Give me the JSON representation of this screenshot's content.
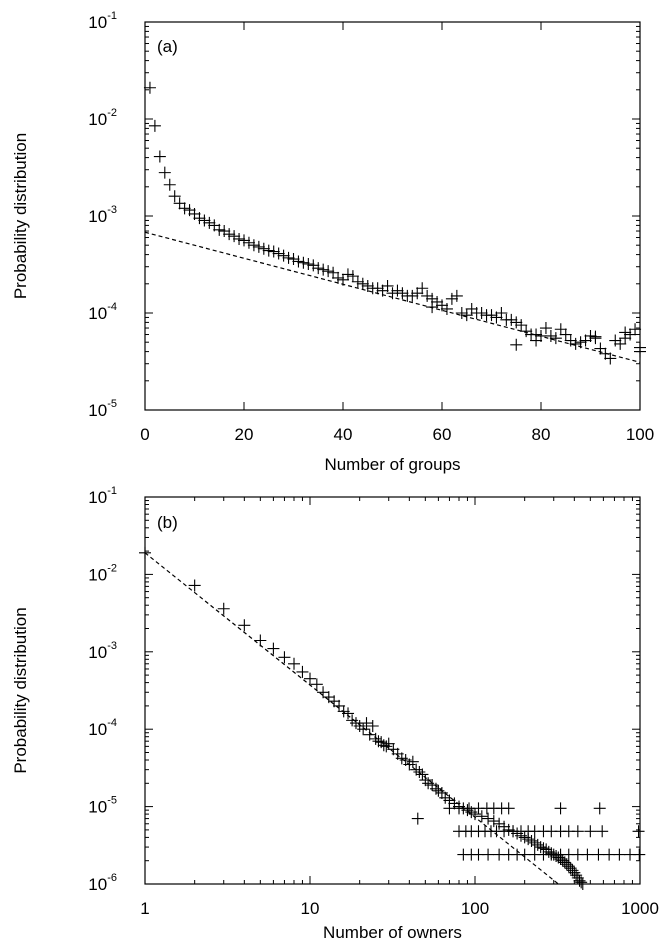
{
  "chart_data": [
    {
      "type": "scatter",
      "panel_label": "(a)",
      "xlabel": "Number of groups",
      "ylabel": "Probability distribution",
      "xscale": "linear",
      "yscale": "log",
      "xlim": [
        0,
        100
      ],
      "ylim": [
        1e-05,
        0.1
      ],
      "x_ticks": [
        {
          "value": 0,
          "label": "0"
        },
        {
          "value": 20,
          "label": "20"
        },
        {
          "value": 40,
          "label": "40"
        },
        {
          "value": 60,
          "label": "60"
        },
        {
          "value": 80,
          "label": "80"
        },
        {
          "value": 100,
          "label": "100"
        }
      ],
      "y_ticks": [
        {
          "value": 1e-05,
          "base": "10",
          "exp": "-5"
        },
        {
          "value": 0.0001,
          "base": "10",
          "exp": "-4"
        },
        {
          "value": 0.001,
          "base": "10",
          "exp": "-3"
        },
        {
          "value": 0.01,
          "base": "10",
          "exp": "-2"
        },
        {
          "value": 0.1,
          "base": "10",
          "exp": "-1"
        }
      ],
      "grid": false,
      "points": [
        [
          1,
          0.021
        ],
        [
          2,
          0.0085
        ],
        [
          3,
          0.0041
        ],
        [
          4,
          0.0028
        ],
        [
          5,
          0.0021
        ],
        [
          6,
          0.0016
        ],
        [
          7,
          0.00135
        ],
        [
          8,
          0.0012
        ],
        [
          9,
          0.00115
        ],
        [
          10,
          0.00105
        ],
        [
          11,
          0.00095
        ],
        [
          12,
          0.0009
        ],
        [
          13,
          0.00085
        ],
        [
          14,
          0.0008
        ],
        [
          15,
          0.00072
        ],
        [
          16,
          0.0007
        ],
        [
          17,
          0.00065
        ],
        [
          18,
          0.00062
        ],
        [
          19,
          0.00058
        ],
        [
          20,
          0.00056
        ],
        [
          21,
          0.00053
        ],
        [
          22,
          0.0005
        ],
        [
          23,
          0.00048
        ],
        [
          24,
          0.00046
        ],
        [
          25,
          0.00044
        ],
        [
          26,
          0.00043
        ],
        [
          27,
          0.00041
        ],
        [
          28,
          0.00039
        ],
        [
          29,
          0.00037
        ],
        [
          30,
          0.00036
        ],
        [
          31,
          0.00034
        ],
        [
          32,
          0.00033
        ],
        [
          33,
          0.00032
        ],
        [
          34,
          0.00031
        ],
        [
          35,
          0.00029
        ],
        [
          36,
          0.00028
        ],
        [
          37,
          0.00027
        ],
        [
          38,
          0.00026
        ],
        [
          39,
          0.00023
        ],
        [
          40,
          0.00022
        ],
        [
          41,
          0.00025
        ],
        [
          42,
          0.00024
        ],
        [
          43,
          0.00021
        ],
        [
          44,
          0.0002
        ],
        [
          45,
          0.00019
        ],
        [
          46,
          0.00018
        ],
        [
          47,
          0.00018
        ],
        [
          48,
          0.00017
        ],
        [
          49,
          0.00019
        ],
        [
          50,
          0.00016
        ],
        [
          51,
          0.00017
        ],
        [
          52,
          0.00016
        ],
        [
          53,
          0.00015
        ],
        [
          54,
          0.00015
        ],
        [
          55,
          0.00016
        ],
        [
          56,
          0.00018
        ],
        [
          57,
          0.00015
        ],
        [
          58,
          0.00014
        ],
        [
          59,
          0.00013
        ],
        [
          60,
          0.00012
        ],
        [
          61,
          0.00011
        ],
        [
          62,
          0.00014
        ],
        [
          63,
          0.00015
        ],
        [
          64,
          0.0001
        ],
        [
          65,
          9.5e-05
        ],
        [
          66,
          0.00011
        ],
        [
          67,
          0.0001
        ],
        [
          68,
          0.0001
        ],
        [
          69,
          9.5e-05
        ],
        [
          70,
          9.5e-05
        ],
        [
          71,
          9e-05
        ],
        [
          72,
          0.0001
        ],
        [
          73,
          8.5e-05
        ],
        [
          74,
          8.5e-05
        ],
        [
          75,
          8e-05
        ],
        [
          76,
          7.5e-05
        ],
        [
          77,
          6.5e-05
        ],
        [
          78,
          6e-05
        ],
        [
          79,
          6e-05
        ],
        [
          80,
          5.8e-05
        ],
        [
          81,
          7e-05
        ],
        [
          82,
          5.8e-05
        ],
        [
          83,
          5.5e-05
        ],
        [
          84,
          6.8e-05
        ],
        [
          85,
          6e-05
        ],
        [
          86,
          5.2e-05
        ],
        [
          87,
          4.8e-05
        ],
        [
          88,
          5e-05
        ],
        [
          89,
          5.2e-05
        ],
        [
          90,
          5.8e-05
        ],
        [
          91,
          5.5e-05
        ],
        [
          92,
          4.3e-05
        ],
        [
          93,
          3.8e-05
        ],
        [
          94,
          3.4e-05
        ],
        [
          95,
          5.2e-05
        ],
        [
          96,
          4.8e-05
        ],
        [
          97,
          5.5e-05
        ],
        [
          98,
          6e-05
        ],
        [
          99,
          6.8e-05
        ],
        [
          100,
          4.4e-05
        ],
        [
          75,
          4.7e-05
        ],
        [
          58,
          0.000115
        ],
        [
          79,
          5.2e-05
        ],
        [
          91,
          5.7e-05
        ],
        [
          97,
          6.3e-05
        ],
        [
          100,
          4e-05
        ]
      ],
      "fit_line": {
        "style": "dashed",
        "x": [
          0,
          100
        ],
        "y": [
          0.00068,
          3.1e-05
        ]
      }
    },
    {
      "type": "scatter",
      "panel_label": "(b)",
      "xlabel": "Number of owners",
      "ylabel": "Probability distribution",
      "xscale": "log",
      "yscale": "log",
      "xlim": [
        1,
        1000
      ],
      "ylim": [
        1e-06,
        0.1
      ],
      "x_ticks": [
        {
          "value": 1,
          "label": "1"
        },
        {
          "value": 10,
          "label": "10"
        },
        {
          "value": 100,
          "label": "100"
        },
        {
          "value": 1000,
          "label": "1000"
        }
      ],
      "y_ticks": [
        {
          "value": 1e-06,
          "base": "10",
          "exp": "-6"
        },
        {
          "value": 1e-05,
          "base": "10",
          "exp": "-5"
        },
        {
          "value": 0.0001,
          "base": "10",
          "exp": "-4"
        },
        {
          "value": 0.001,
          "base": "10",
          "exp": "-3"
        },
        {
          "value": 0.01,
          "base": "10",
          "exp": "-2"
        },
        {
          "value": 0.1,
          "base": "10",
          "exp": "-1"
        }
      ],
      "grid": false,
      "points": [
        [
          1,
          0.019
        ],
        [
          2,
          0.0072
        ],
        [
          3,
          0.0036
        ],
        [
          4,
          0.0022
        ],
        [
          5,
          0.0014
        ],
        [
          6,
          0.0011
        ],
        [
          7,
          0.00085
        ],
        [
          8,
          0.0007
        ],
        [
          9,
          0.00055
        ],
        [
          10,
          0.00045
        ],
        [
          11,
          0.00038
        ],
        [
          12,
          0.0003
        ],
        [
          13,
          0.00026
        ],
        [
          14,
          0.00023
        ],
        [
          15,
          0.0002
        ],
        [
          16,
          0.00017
        ],
        [
          17,
          0.00016
        ],
        [
          18,
          0.00013
        ],
        [
          19,
          0.00012
        ],
        [
          20,
          0.00011
        ],
        [
          21,
          0.0001
        ],
        [
          22,
          0.00012
        ],
        [
          23,
          8.5e-05
        ],
        [
          24,
          0.00011
        ],
        [
          25,
          7.5e-05
        ],
        [
          26,
          7e-05
        ],
        [
          27,
          6.8e-05
        ],
        [
          28,
          6.2e-05
        ],
        [
          29,
          6e-05
        ],
        [
          30,
          6.5e-05
        ],
        [
          32,
          5.5e-05
        ],
        [
          34,
          4.8e-05
        ],
        [
          36,
          4.2e-05
        ],
        [
          38,
          4e-05
        ],
        [
          40,
          3.5e-05
        ],
        [
          42,
          3.8e-05
        ],
        [
          44,
          3e-05
        ],
        [
          46,
          2.8e-05
        ],
        [
          48,
          2.6e-05
        ],
        [
          50,
          2.2e-05
        ],
        [
          52,
          2e-05
        ],
        [
          55,
          1.9e-05
        ],
        [
          58,
          1.7e-05
        ],
        [
          60,
          1.6e-05
        ],
        [
          63,
          1.5e-05
        ],
        [
          66,
          1.3e-05
        ],
        [
          70,
          1.2e-05
        ],
        [
          75,
          1.1e-05
        ],
        [
          80,
          1e-05
        ],
        [
          85,
          9.5e-06
        ],
        [
          90,
          9e-06
        ],
        [
          95,
          8.5e-06
        ],
        [
          100,
          8e-06
        ],
        [
          110,
          7.5e-06
        ],
        [
          120,
          7e-06
        ],
        [
          130,
          6.5e-06
        ],
        [
          140,
          6e-06
        ],
        [
          150,
          5.5e-06
        ],
        [
          160,
          5e-06
        ],
        [
          170,
          4.8e-06
        ],
        [
          180,
          4.5e-06
        ],
        [
          190,
          4.2e-06
        ],
        [
          200,
          4e-06
        ],
        [
          210,
          3.8e-06
        ],
        [
          220,
          3.6e-06
        ],
        [
          230,
          3.4e-06
        ],
        [
          240,
          3.2e-06
        ],
        [
          250,
          3e-06
        ],
        [
          260,
          2.9e-06
        ],
        [
          270,
          2.8e-06
        ],
        [
          280,
          2.6e-06
        ],
        [
          290,
          2.5e-06
        ],
        [
          300,
          2.4e-06
        ],
        [
          310,
          2.3e-06
        ],
        [
          320,
          2.2e-06
        ],
        [
          330,
          2.1e-06
        ],
        [
          340,
          2e-06
        ],
        [
          350,
          1.9e-06
        ],
        [
          360,
          1.8e-06
        ],
        [
          370,
          1.7e-06
        ],
        [
          380,
          1.6e-06
        ],
        [
          390,
          1.5e-06
        ],
        [
          400,
          1.4e-06
        ],
        [
          410,
          1.3e-06
        ],
        [
          420,
          1.2e-06
        ],
        [
          430,
          1.1e-06
        ],
        [
          440,
          1.05e-06
        ],
        [
          450,
          1e-06
        ],
        [
          460,
          9.5e-07
        ],
        [
          470,
          9e-07
        ],
        [
          45,
          7e-06
        ],
        [
          80,
          4.8e-06
        ],
        [
          88,
          4.8e-06
        ],
        [
          95,
          4.8e-06
        ],
        [
          105,
          4.8e-06
        ],
        [
          115,
          4.8e-06
        ],
        [
          125,
          4.8e-06
        ],
        [
          135,
          4.8e-06
        ],
        [
          150,
          4.8e-06
        ],
        [
          170,
          4.8e-06
        ],
        [
          190,
          4.8e-06
        ],
        [
          210,
          4.8e-06
        ],
        [
          230,
          4.8e-06
        ],
        [
          260,
          4.8e-06
        ],
        [
          290,
          4.8e-06
        ],
        [
          330,
          4.8e-06
        ],
        [
          370,
          4.8e-06
        ],
        [
          420,
          4.8e-06
        ],
        [
          500,
          4.8e-06
        ],
        [
          590,
          4.8e-06
        ],
        [
          980,
          4.8e-06
        ],
        [
          70,
          9.5e-06
        ],
        [
          80,
          9.5e-06
        ],
        [
          92,
          9.5e-06
        ],
        [
          105,
          9.5e-06
        ],
        [
          118,
          9.5e-06
        ],
        [
          130,
          9.5e-06
        ],
        [
          145,
          9.5e-06
        ],
        [
          160,
          9.5e-06
        ],
        [
          330,
          9.5e-06
        ],
        [
          570,
          9.5e-06
        ],
        [
          85,
          2.4e-06
        ],
        [
          95,
          2.4e-06
        ],
        [
          105,
          2.4e-06
        ],
        [
          120,
          2.4e-06
        ],
        [
          140,
          2.4e-06
        ],
        [
          160,
          2.4e-06
        ],
        [
          180,
          2.4e-06
        ],
        [
          200,
          2.4e-06
        ],
        [
          230,
          2.4e-06
        ],
        [
          260,
          2.4e-06
        ],
        [
          290,
          2.4e-06
        ],
        [
          330,
          2.4e-06
        ],
        [
          370,
          2.4e-06
        ],
        [
          420,
          2.4e-06
        ],
        [
          480,
          2.4e-06
        ],
        [
          560,
          2.4e-06
        ],
        [
          650,
          2.4e-06
        ],
        [
          750,
          2.4e-06
        ],
        [
          870,
          2.4e-06
        ],
        [
          990,
          2.4e-06
        ]
      ],
      "fit_line": {
        "style": "dashed",
        "x": [
          1,
          320
        ],
        "y": [
          0.019,
          1e-06
        ]
      }
    }
  ]
}
